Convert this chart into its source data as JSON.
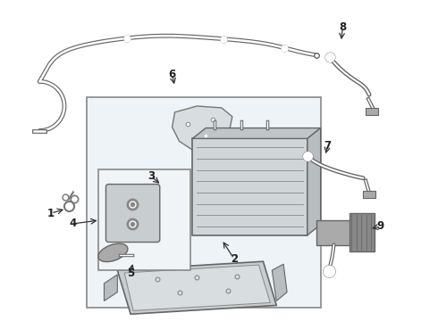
{
  "bg_color": "#ffffff",
  "line_color": "#888888",
  "dark_color": "#444444",
  "box_bg": "#eef3f8",
  "fig_bg": "#ffffff",
  "lw_main": 1.5,
  "lw_thin": 1.0
}
